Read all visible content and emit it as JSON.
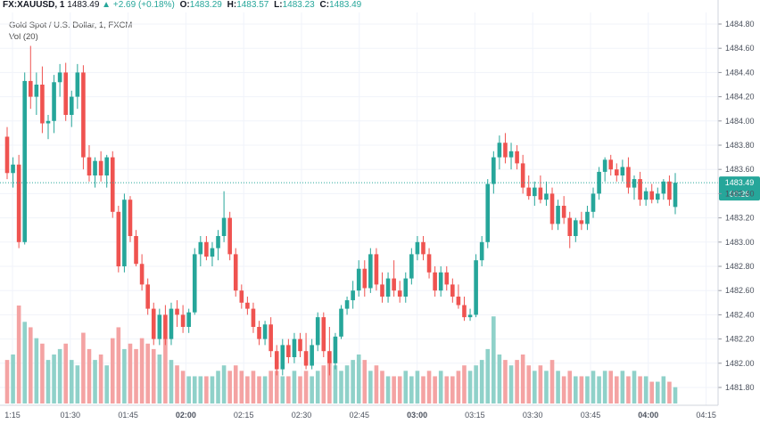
{
  "header": {
    "symbol": "FX:XAUUSD, 1",
    "last": "1483.49",
    "change": "+2.69 (+0.18%)",
    "open_label": "O:",
    "open": "1483.29",
    "high_label": "H:",
    "high": "1483.57",
    "low_label": "L:",
    "low": "1483.23",
    "close_label": "C:",
    "close": "1483.49"
  },
  "legend": {
    "title": "Gold Spot / U.S. Dollar, 1, FXCM",
    "volume": "Vol (20)"
  },
  "colors": {
    "up": "#26a69a",
    "down": "#ef5350",
    "up_vol": "#8fd1c9",
    "down_vol": "#f4a3a3",
    "grid": "#f0f3fa",
    "price_line": "#26a69a"
  },
  "price_tag": {
    "price": "1483.49",
    "countdown": "00:26"
  },
  "chart_data": {
    "type": "candlestick",
    "title": "Gold Spot / U.S. Dollar, 1, FXCM",
    "y_ticks": [
      "1484.80",
      "1484.60",
      "1484.40",
      "1484.20",
      "1484.00",
      "1483.80",
      "1483.60",
      "1483.40",
      "1483.20",
      "1483.00",
      "1482.80",
      "1482.60",
      "1482.40",
      "1482.20",
      "1482.00",
      "1481.80"
    ],
    "ylim": [
      1481.7,
      1484.9
    ],
    "x_ticks": [
      "1:15",
      "01:30",
      "01:45",
      "02:00",
      "02:15",
      "02:30",
      "02:45",
      "03:00",
      "03:15",
      "03:30",
      "03:45",
      "04:00",
      "04:15"
    ],
    "current_price": 1483.49,
    "candles": [
      {
        "o": 1483.87,
        "h": 1483.95,
        "l": 1483.52,
        "c": 1483.57,
        "v": 8
      },
      {
        "o": 1483.57,
        "h": 1483.7,
        "l": 1483.45,
        "c": 1483.64,
        "v": 9
      },
      {
        "o": 1483.64,
        "h": 1483.72,
        "l": 1482.95,
        "c": 1483.0,
        "v": 18
      },
      {
        "o": 1483.0,
        "h": 1484.4,
        "l": 1482.98,
        "c": 1484.33,
        "v": 15
      },
      {
        "o": 1484.33,
        "h": 1484.62,
        "l": 1484.1,
        "c": 1484.2,
        "v": 14
      },
      {
        "o": 1484.2,
        "h": 1484.4,
        "l": 1484.05,
        "c": 1484.3,
        "v": 12
      },
      {
        "o": 1484.3,
        "h": 1484.45,
        "l": 1483.9,
        "c": 1483.98,
        "v": 11
      },
      {
        "o": 1483.98,
        "h": 1484.05,
        "l": 1483.85,
        "c": 1484.0,
        "v": 8
      },
      {
        "o": 1484.0,
        "h": 1484.38,
        "l": 1483.9,
        "c": 1484.32,
        "v": 9
      },
      {
        "o": 1484.32,
        "h": 1484.47,
        "l": 1484.2,
        "c": 1484.4,
        "v": 10
      },
      {
        "o": 1484.4,
        "h": 1484.48,
        "l": 1484.0,
        "c": 1484.05,
        "v": 11
      },
      {
        "o": 1484.05,
        "h": 1484.25,
        "l": 1483.95,
        "c": 1484.2,
        "v": 8
      },
      {
        "o": 1484.2,
        "h": 1484.47,
        "l": 1484.1,
        "c": 1484.4,
        "v": 7
      },
      {
        "o": 1484.4,
        "h": 1484.46,
        "l": 1483.6,
        "c": 1483.7,
        "v": 13
      },
      {
        "o": 1483.7,
        "h": 1483.8,
        "l": 1483.5,
        "c": 1483.55,
        "v": 10
      },
      {
        "o": 1483.55,
        "h": 1483.7,
        "l": 1483.45,
        "c": 1483.67,
        "v": 8
      },
      {
        "o": 1483.67,
        "h": 1483.75,
        "l": 1483.5,
        "c": 1483.55,
        "v": 9
      },
      {
        "o": 1483.55,
        "h": 1483.72,
        "l": 1483.45,
        "c": 1483.7,
        "v": 7
      },
      {
        "o": 1483.7,
        "h": 1483.75,
        "l": 1483.2,
        "c": 1483.25,
        "v": 12
      },
      {
        "o": 1483.25,
        "h": 1483.3,
        "l": 1482.75,
        "c": 1482.8,
        "v": 14
      },
      {
        "o": 1482.8,
        "h": 1483.4,
        "l": 1482.75,
        "c": 1483.35,
        "v": 10
      },
      {
        "o": 1483.35,
        "h": 1483.38,
        "l": 1483.0,
        "c": 1483.05,
        "v": 11
      },
      {
        "o": 1483.05,
        "h": 1483.1,
        "l": 1482.8,
        "c": 1482.82,
        "v": 10
      },
      {
        "o": 1482.82,
        "h": 1482.9,
        "l": 1482.6,
        "c": 1482.65,
        "v": 12
      },
      {
        "o": 1482.65,
        "h": 1482.7,
        "l": 1482.4,
        "c": 1482.45,
        "v": 11
      },
      {
        "o": 1482.45,
        "h": 1482.5,
        "l": 1482.15,
        "c": 1482.2,
        "v": 10
      },
      {
        "o": 1482.2,
        "h": 1482.45,
        "l": 1482.15,
        "c": 1482.4,
        "v": 9
      },
      {
        "o": 1482.4,
        "h": 1482.48,
        "l": 1482.15,
        "c": 1482.2,
        "v": 12
      },
      {
        "o": 1482.2,
        "h": 1482.5,
        "l": 1482.15,
        "c": 1482.45,
        "v": 8
      },
      {
        "o": 1482.45,
        "h": 1482.52,
        "l": 1482.3,
        "c": 1482.4,
        "v": 7
      },
      {
        "o": 1482.4,
        "h": 1482.48,
        "l": 1482.25,
        "c": 1482.3,
        "v": 6
      },
      {
        "o": 1482.3,
        "h": 1482.45,
        "l": 1482.25,
        "c": 1482.42,
        "v": 5
      },
      {
        "o": 1482.42,
        "h": 1482.95,
        "l": 1482.4,
        "c": 1482.9,
        "v": 5
      },
      {
        "o": 1482.9,
        "h": 1483.05,
        "l": 1482.8,
        "c": 1483.0,
        "v": 5
      },
      {
        "o": 1483.0,
        "h": 1483.05,
        "l": 1482.85,
        "c": 1482.88,
        "v": 5
      },
      {
        "o": 1482.88,
        "h": 1483.0,
        "l": 1482.8,
        "c": 1482.95,
        "v": 5
      },
      {
        "o": 1482.95,
        "h": 1483.1,
        "l": 1482.85,
        "c": 1483.05,
        "v": 6
      },
      {
        "o": 1483.05,
        "h": 1483.42,
        "l": 1483.0,
        "c": 1483.2,
        "v": 7
      },
      {
        "o": 1483.2,
        "h": 1483.25,
        "l": 1482.85,
        "c": 1482.9,
        "v": 6
      },
      {
        "o": 1482.9,
        "h": 1482.95,
        "l": 1482.55,
        "c": 1482.6,
        "v": 7
      },
      {
        "o": 1482.6,
        "h": 1482.65,
        "l": 1482.45,
        "c": 1482.5,
        "v": 6
      },
      {
        "o": 1482.5,
        "h": 1482.55,
        "l": 1482.4,
        "c": 1482.45,
        "v": 5
      },
      {
        "o": 1482.45,
        "h": 1482.5,
        "l": 1482.25,
        "c": 1482.3,
        "v": 6
      },
      {
        "o": 1482.3,
        "h": 1482.35,
        "l": 1482.15,
        "c": 1482.2,
        "v": 5
      },
      {
        "o": 1482.2,
        "h": 1482.35,
        "l": 1482.15,
        "c": 1482.32,
        "v": 5
      },
      {
        "o": 1482.32,
        "h": 1482.38,
        "l": 1482.05,
        "c": 1482.1,
        "v": 6
      },
      {
        "o": 1482.1,
        "h": 1482.15,
        "l": 1481.9,
        "c": 1481.95,
        "v": 6
      },
      {
        "o": 1481.95,
        "h": 1482.2,
        "l": 1481.9,
        "c": 1482.15,
        "v": 5
      },
      {
        "o": 1482.15,
        "h": 1482.2,
        "l": 1482.0,
        "c": 1482.05,
        "v": 5
      },
      {
        "o": 1482.05,
        "h": 1482.25,
        "l": 1482.0,
        "c": 1482.2,
        "v": 6
      },
      {
        "o": 1482.2,
        "h": 1482.25,
        "l": 1482.05,
        "c": 1482.1,
        "v": 5
      },
      {
        "o": 1482.1,
        "h": 1482.25,
        "l": 1481.95,
        "c": 1481.98,
        "v": 6
      },
      {
        "o": 1481.98,
        "h": 1482.2,
        "l": 1481.95,
        "c": 1482.15,
        "v": 5
      },
      {
        "o": 1482.15,
        "h": 1482.42,
        "l": 1482.1,
        "c": 1482.38,
        "v": 6
      },
      {
        "o": 1482.38,
        "h": 1482.42,
        "l": 1482.05,
        "c": 1482.1,
        "v": 7
      },
      {
        "o": 1482.1,
        "h": 1482.3,
        "l": 1481.9,
        "c": 1482.0,
        "v": 8
      },
      {
        "o": 1482.0,
        "h": 1482.25,
        "l": 1481.95,
        "c": 1482.22,
        "v": 7
      },
      {
        "o": 1482.22,
        "h": 1482.48,
        "l": 1482.2,
        "c": 1482.45,
        "v": 6
      },
      {
        "o": 1482.45,
        "h": 1482.55,
        "l": 1482.4,
        "c": 1482.52,
        "v": 7
      },
      {
        "o": 1482.52,
        "h": 1482.68,
        "l": 1482.45,
        "c": 1482.6,
        "v": 8
      },
      {
        "o": 1482.6,
        "h": 1482.85,
        "l": 1482.55,
        "c": 1482.78,
        "v": 9
      },
      {
        "o": 1482.78,
        "h": 1482.85,
        "l": 1482.55,
        "c": 1482.62,
        "v": 8
      },
      {
        "o": 1482.62,
        "h": 1482.95,
        "l": 1482.58,
        "c": 1482.9,
        "v": 6
      },
      {
        "o": 1482.9,
        "h": 1482.95,
        "l": 1482.6,
        "c": 1482.65,
        "v": 7
      },
      {
        "o": 1482.65,
        "h": 1482.75,
        "l": 1482.5,
        "c": 1482.55,
        "v": 6
      },
      {
        "o": 1482.55,
        "h": 1482.75,
        "l": 1482.5,
        "c": 1482.7,
        "v": 5
      },
      {
        "o": 1482.7,
        "h": 1482.85,
        "l": 1482.55,
        "c": 1482.6,
        "v": 5
      },
      {
        "o": 1482.6,
        "h": 1482.68,
        "l": 1482.5,
        "c": 1482.55,
        "v": 5
      },
      {
        "o": 1482.55,
        "h": 1482.75,
        "l": 1482.5,
        "c": 1482.7,
        "v": 6
      },
      {
        "o": 1482.7,
        "h": 1482.95,
        "l": 1482.65,
        "c": 1482.9,
        "v": 5
      },
      {
        "o": 1482.9,
        "h": 1483.05,
        "l": 1482.85,
        "c": 1483.0,
        "v": 6
      },
      {
        "o": 1483.0,
        "h": 1483.05,
        "l": 1482.85,
        "c": 1482.9,
        "v": 5
      },
      {
        "o": 1482.9,
        "h": 1482.95,
        "l": 1482.7,
        "c": 1482.75,
        "v": 6
      },
      {
        "o": 1482.75,
        "h": 1482.8,
        "l": 1482.55,
        "c": 1482.6,
        "v": 5
      },
      {
        "o": 1482.6,
        "h": 1482.8,
        "l": 1482.55,
        "c": 1482.75,
        "v": 6
      },
      {
        "o": 1482.75,
        "h": 1482.8,
        "l": 1482.6,
        "c": 1482.65,
        "v": 5
      },
      {
        "o": 1482.65,
        "h": 1482.7,
        "l": 1482.5,
        "c": 1482.55,
        "v": 5
      },
      {
        "o": 1482.55,
        "h": 1482.65,
        "l": 1482.45,
        "c": 1482.48,
        "v": 6
      },
      {
        "o": 1482.48,
        "h": 1482.55,
        "l": 1482.35,
        "c": 1482.38,
        "v": 7
      },
      {
        "o": 1482.38,
        "h": 1482.45,
        "l": 1482.35,
        "c": 1482.4,
        "v": 6
      },
      {
        "o": 1482.4,
        "h": 1482.9,
        "l": 1482.38,
        "c": 1482.85,
        "v": 7
      },
      {
        "o": 1482.85,
        "h": 1483.05,
        "l": 1482.8,
        "c": 1483.0,
        "v": 8
      },
      {
        "o": 1483.0,
        "h": 1483.52,
        "l": 1482.95,
        "c": 1483.48,
        "v": 10
      },
      {
        "o": 1483.48,
        "h": 1483.75,
        "l": 1483.4,
        "c": 1483.7,
        "v": 16
      },
      {
        "o": 1483.7,
        "h": 1483.88,
        "l": 1483.6,
        "c": 1483.82,
        "v": 9
      },
      {
        "o": 1483.82,
        "h": 1483.9,
        "l": 1483.65,
        "c": 1483.7,
        "v": 8
      },
      {
        "o": 1483.7,
        "h": 1483.82,
        "l": 1483.6,
        "c": 1483.75,
        "v": 7
      },
      {
        "o": 1483.75,
        "h": 1483.8,
        "l": 1483.6,
        "c": 1483.65,
        "v": 8
      },
      {
        "o": 1483.65,
        "h": 1483.72,
        "l": 1483.4,
        "c": 1483.45,
        "v": 9
      },
      {
        "o": 1483.45,
        "h": 1483.55,
        "l": 1483.35,
        "c": 1483.38,
        "v": 7
      },
      {
        "o": 1483.38,
        "h": 1483.5,
        "l": 1483.3,
        "c": 1483.45,
        "v": 6
      },
      {
        "o": 1483.45,
        "h": 1483.55,
        "l": 1483.32,
        "c": 1483.35,
        "v": 7
      },
      {
        "o": 1483.35,
        "h": 1483.5,
        "l": 1483.3,
        "c": 1483.4,
        "v": 6
      },
      {
        "o": 1483.4,
        "h": 1483.45,
        "l": 1483.1,
        "c": 1483.15,
        "v": 8
      },
      {
        "o": 1483.15,
        "h": 1483.35,
        "l": 1483.1,
        "c": 1483.3,
        "v": 6
      },
      {
        "o": 1483.3,
        "h": 1483.38,
        "l": 1483.15,
        "c": 1483.2,
        "v": 5
      },
      {
        "o": 1483.2,
        "h": 1483.25,
        "l": 1482.95,
        "c": 1483.05,
        "v": 6
      },
      {
        "o": 1483.05,
        "h": 1483.2,
        "l": 1483.0,
        "c": 1483.18,
        "v": 5
      },
      {
        "o": 1483.18,
        "h": 1483.25,
        "l": 1483.1,
        "c": 1483.15,
        "v": 5
      },
      {
        "o": 1483.15,
        "h": 1483.3,
        "l": 1483.1,
        "c": 1483.25,
        "v": 5
      },
      {
        "o": 1483.25,
        "h": 1483.45,
        "l": 1483.2,
        "c": 1483.4,
        "v": 6
      },
      {
        "o": 1483.4,
        "h": 1483.62,
        "l": 1483.35,
        "c": 1483.58,
        "v": 5
      },
      {
        "o": 1483.58,
        "h": 1483.7,
        "l": 1483.5,
        "c": 1483.68,
        "v": 6
      },
      {
        "o": 1483.68,
        "h": 1483.72,
        "l": 1483.55,
        "c": 1483.6,
        "v": 6
      },
      {
        "o": 1483.6,
        "h": 1483.65,
        "l": 1483.5,
        "c": 1483.55,
        "v": 5
      },
      {
        "o": 1483.55,
        "h": 1483.68,
        "l": 1483.5,
        "c": 1483.62,
        "v": 6
      },
      {
        "o": 1483.62,
        "h": 1483.7,
        "l": 1483.4,
        "c": 1483.45,
        "v": 5
      },
      {
        "o": 1483.45,
        "h": 1483.55,
        "l": 1483.35,
        "c": 1483.52,
        "v": 6
      },
      {
        "o": 1483.52,
        "h": 1483.58,
        "l": 1483.3,
        "c": 1483.35,
        "v": 5
      },
      {
        "o": 1483.35,
        "h": 1483.45,
        "l": 1483.3,
        "c": 1483.42,
        "v": 5
      },
      {
        "o": 1483.42,
        "h": 1483.48,
        "l": 1483.32,
        "c": 1483.35,
        "v": 4
      },
      {
        "o": 1483.35,
        "h": 1483.45,
        "l": 1483.32,
        "c": 1483.4,
        "v": 4
      },
      {
        "o": 1483.4,
        "h": 1483.52,
        "l": 1483.35,
        "c": 1483.5,
        "v": 5
      },
      {
        "o": 1483.5,
        "h": 1483.55,
        "l": 1483.3,
        "c": 1483.35,
        "v": 4
      },
      {
        "o": 1483.29,
        "h": 1483.57,
        "l": 1483.23,
        "c": 1483.49,
        "v": 3
      }
    ]
  }
}
